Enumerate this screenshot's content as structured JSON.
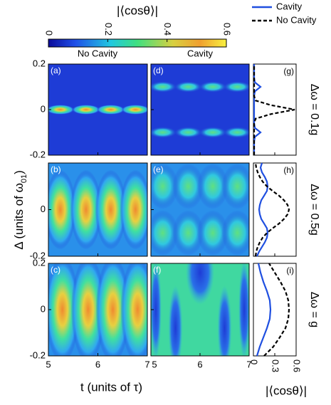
{
  "chart_data": {
    "type": "heatmap_grid",
    "colorbar": {
      "title": "|⟨cosθ⟩|",
      "lim": [
        0,
        0.6
      ],
      "ticks": [
        0,
        0.2,
        0.4,
        0.6
      ]
    },
    "column_titles": [
      "No Cavity",
      "Cavity"
    ],
    "xlabel": "t (units of τ)",
    "ylabel": {
      "text": "Δ (units of ω",
      "sub": "01",
      "end": ")"
    },
    "xlim": [
      5,
      7
    ],
    "xticks": [
      5,
      6,
      7
    ],
    "ylim": [
      -0.2,
      0.2
    ],
    "yticks": [
      -0.2,
      0,
      0.2
    ],
    "panel_labels": [
      "(a)",
      "(b)",
      "(c)",
      "(d)",
      "(e)",
      "(f)"
    ],
    "profile": {
      "type": "line",
      "xlim": [
        0,
        0.6
      ],
      "xticks": [
        0,
        0.3,
        0.6
      ],
      "xlabel": "|⟨cosθ⟩|",
      "series": [
        {
          "name": "Cavity",
          "color": "#1f4fe0",
          "dash": false
        },
        {
          "name": "No Cavity",
          "color": "#000000",
          "dash": true
        }
      ],
      "panels": [
        {
          "label": "(g)",
          "title": "Δω = 0.1g",
          "y": [
            -0.2,
            -0.18,
            -0.16,
            -0.14,
            -0.12,
            -0.1,
            -0.08,
            -0.06,
            -0.04,
            -0.02,
            0,
            0.02,
            0.04,
            0.06,
            0.08,
            0.1,
            0.12,
            0.14,
            0.16,
            0.18,
            0.2
          ],
          "series": [
            {
              "values": [
                0.01,
                0.01,
                0.01,
                0.01,
                0.02,
                0.1,
                0.02,
                0.01,
                0.01,
                0.01,
                0.01,
                0.01,
                0.01,
                0.01,
                0.02,
                0.1,
                0.02,
                0.01,
                0.01,
                0.01,
                0.01
              ]
            },
            {
              "values": [
                0.01,
                0.01,
                0.01,
                0.01,
                0.01,
                0.01,
                0.01,
                0.01,
                0.03,
                0.24,
                0.58,
                0.24,
                0.03,
                0.01,
                0.01,
                0.01,
                0.01,
                0.01,
                0.01,
                0.01,
                0.01
              ]
            }
          ]
        },
        {
          "label": "(h)",
          "title": "Δω = 0.5g",
          "y": [
            -0.2,
            -0.18,
            -0.16,
            -0.14,
            -0.12,
            -0.1,
            -0.08,
            -0.06,
            -0.04,
            -0.02,
            0,
            0.02,
            0.04,
            0.06,
            0.08,
            0.1,
            0.12,
            0.14,
            0.16,
            0.18,
            0.2
          ],
          "series": [
            {
              "values": [
                0.05,
                0.08,
                0.12,
                0.16,
                0.19,
                0.2,
                0.19,
                0.15,
                0.11,
                0.09,
                0.08,
                0.09,
                0.11,
                0.15,
                0.19,
                0.2,
                0.19,
                0.16,
                0.12,
                0.1,
                0.12
              ]
            },
            {
              "values": [
                0.03,
                0.04,
                0.06,
                0.09,
                0.13,
                0.19,
                0.27,
                0.36,
                0.43,
                0.48,
                0.5,
                0.48,
                0.43,
                0.36,
                0.27,
                0.19,
                0.13,
                0.09,
                0.06,
                0.04,
                0.03
              ]
            }
          ]
        },
        {
          "label": "(i)",
          "title": "Δω = g",
          "y": [
            -0.2,
            -0.16,
            -0.12,
            -0.08,
            -0.04,
            0,
            0.04,
            0.08,
            0.12,
            0.16,
            0.2
          ],
          "series": [
            {
              "values": [
                0.05,
                0.09,
                0.14,
                0.19,
                0.23,
                0.24,
                0.23,
                0.19,
                0.14,
                0.1,
                0.07
              ]
            },
            {
              "values": [
                0.15,
                0.28,
                0.37,
                0.45,
                0.49,
                0.5,
                0.49,
                0.45,
                0.38,
                0.3,
                0.22
              ]
            }
          ]
        }
      ]
    }
  }
}
